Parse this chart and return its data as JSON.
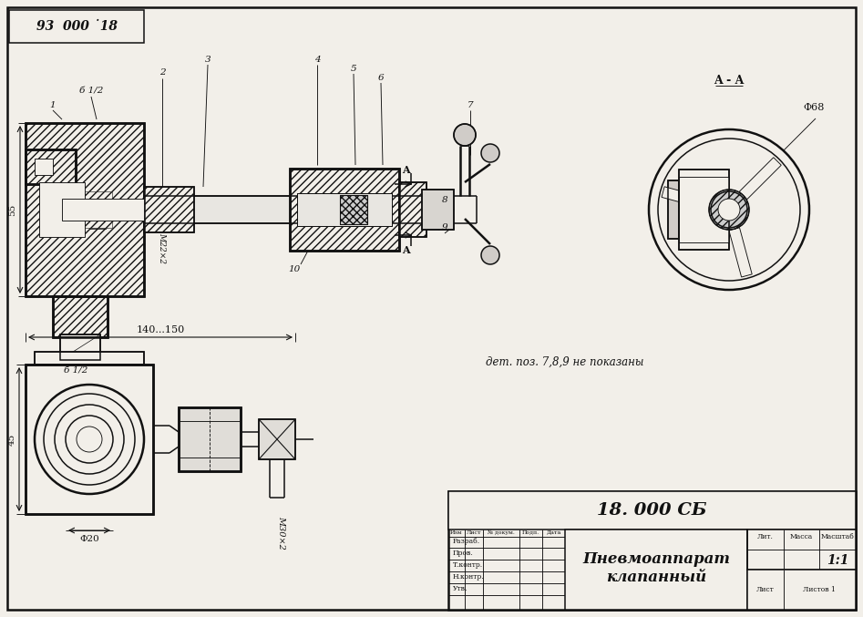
{
  "bg_color": "#f2efe9",
  "col_dark": "#111111",
  "title_box_text": "93  000 ˙18",
  "section_label": "A - A",
  "drawing_title_line1": "Пневмоаппарат",
  "drawing_title_line2": "клапанный",
  "doc_number": "18. 000 СБ",
  "scale": "1:1",
  "sheet_label": "Лист",
  "sheets_label": "Листов 1",
  "dim_55": "55",
  "dim_45": "45",
  "dim_140_150": "140...150",
  "dim_phi20": "Φ20",
  "dim_phi68": "Φ68",
  "label_m22x2": "M22×2",
  "label_m30x2": "M30×2",
  "label_b1_2": "б 1/2",
  "note_text": "дет. поз. 7,8,9 не показаны",
  "lit_label": "Лит.",
  "mass_label": "Масса",
  "masshtab_label": "Масштаб",
  "col_headers": [
    "Изм",
    "Лист",
    "№ докум.",
    "Подп.",
    "Дата"
  ],
  "row_labels": [
    "Разраб.",
    "Пров.",
    "Т.контр.",
    "Н.контр.",
    "Утв."
  ]
}
